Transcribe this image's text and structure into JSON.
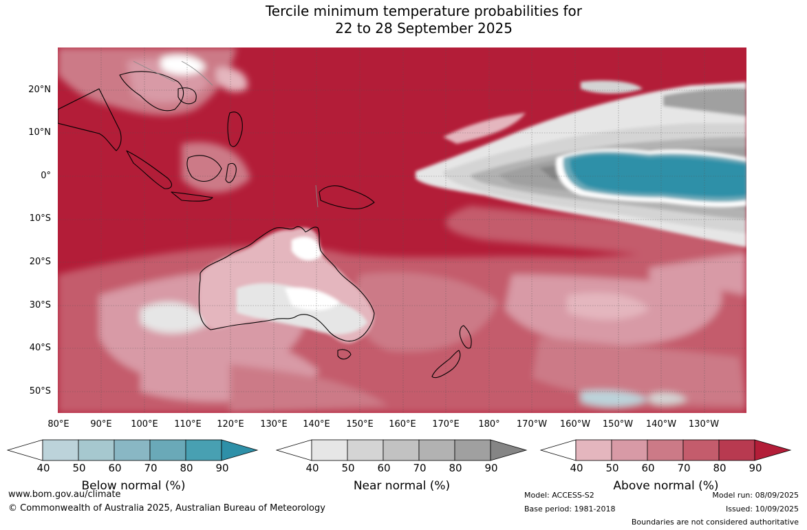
{
  "title": {
    "line1": "Tercile minimum temperature probabilities for",
    "line2": "22 to 28 September 2025"
  },
  "map": {
    "lat_labels": [
      "20°N",
      "10°N",
      "0°",
      "10°S",
      "20°S",
      "30°S",
      "40°S",
      "50°S"
    ],
    "lon_labels": [
      "80°E",
      "90°E",
      "100°E",
      "110°E",
      "120°E",
      "130°E",
      "140°E",
      "150°E",
      "160°E",
      "170°E",
      "180°",
      "170°W",
      "160°W",
      "150°W",
      "140°W",
      "130°W"
    ]
  },
  "colorbars": [
    {
      "title": "Below normal (%)",
      "ticks": [
        "40",
        "50",
        "60",
        "70",
        "80",
        "90"
      ],
      "colors": [
        "#ffffff",
        "#bcd3da",
        "#a6c8cf",
        "#89b7c4",
        "#6aa9b8",
        "#48a0b2",
        "#2e90a8"
      ]
    },
    {
      "title": "Near normal (%)",
      "ticks": [
        "40",
        "50",
        "60",
        "70",
        "80",
        "90"
      ],
      "colors": [
        "#ffffff",
        "#e6e6e6",
        "#d4d4d4",
        "#c2c2c2",
        "#b2b2b2",
        "#a0a0a0",
        "#858585"
      ]
    },
    {
      "title": "Above normal (%)",
      "ticks": [
        "40",
        "50",
        "60",
        "70",
        "80",
        "90"
      ],
      "colors": [
        "#ffffff",
        "#e4b6be",
        "#d89aa6",
        "#cc7a87",
        "#c45c6c",
        "#b83a50",
        "#b31d38"
      ]
    }
  ],
  "footer": {
    "url": "www.bom.gov.au/climate",
    "copyright": "© Commonwealth of Australia 2025, Australian Bureau of Meteorology",
    "model": "Model: ACCESS-S2",
    "base_period": "Base period: 1981-2018",
    "model_run": "Model run: 08/09/2025",
    "issued": "Issued: 10/09/2025",
    "disclaimer": "Boundaries are not considered authoritative"
  }
}
